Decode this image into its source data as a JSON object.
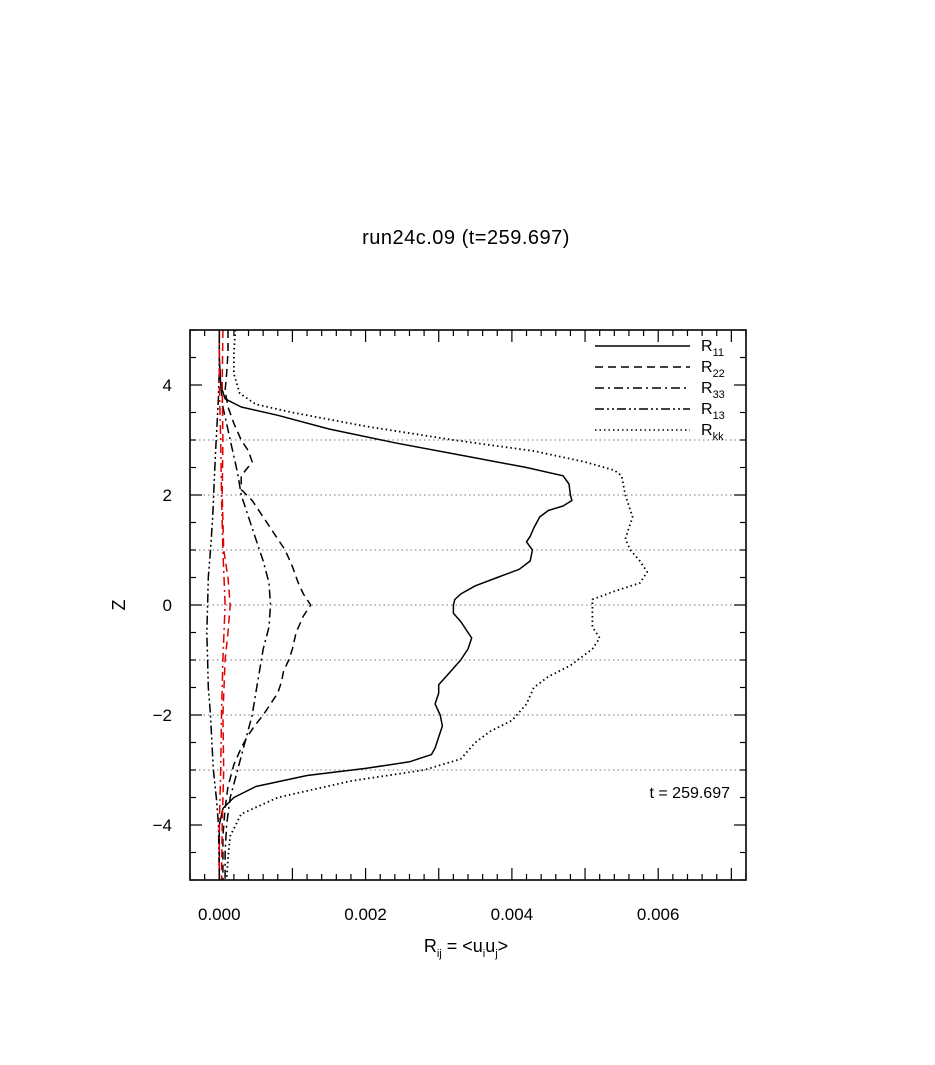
{
  "chart_data": {
    "type": "line",
    "title": "run24c.09 (t=259.697)",
    "xlabel": "R_ij = <u_i u_j>",
    "xlabel_parts": {
      "main": "R",
      "sub": "ij",
      "eq": " = <u",
      "sub_i": "i",
      "u": "u",
      "sub_j": "j",
      "close": ">"
    },
    "ylabel": "Z",
    "xlim": [
      -0.0004,
      0.0072
    ],
    "ylim": [
      -5,
      5
    ],
    "xticks": [
      0.0,
      0.002,
      0.004,
      0.006
    ],
    "xtick_labels": [
      "0.000",
      "0.002",
      "0.004",
      "0.006"
    ],
    "yticks": [
      -4,
      -2,
      0,
      2,
      4
    ],
    "ytick_labels": [
      "−4",
      "−2",
      "0",
      "2",
      "4"
    ],
    "grid_y": [
      -3,
      -2,
      -1,
      0,
      1,
      2,
      3
    ],
    "grid": "horizontal dotted at z = -3..3",
    "legend": {
      "placement": "top-right"
    },
    "annotation": "t = 259.697",
    "series": [
      {
        "name": "R11",
        "name_main": "R",
        "name_sub": "11",
        "style": "solid",
        "color": "#000000",
        "points": [
          [
            0.0,
            5.0
          ],
          [
            0.0,
            4.5
          ],
          [
            2e-05,
            4.0
          ],
          [
            8e-05,
            3.75
          ],
          [
            0.0003,
            3.6
          ],
          [
            0.0008,
            3.45
          ],
          [
            0.0015,
            3.2
          ],
          [
            0.0024,
            2.95
          ],
          [
            0.0034,
            2.7
          ],
          [
            0.0042,
            2.5
          ],
          [
            0.0047,
            2.35
          ],
          [
            0.00478,
            2.2
          ],
          [
            0.0048,
            2.0
          ],
          [
            0.00482,
            1.9
          ],
          [
            0.0047,
            1.8
          ],
          [
            0.0045,
            1.72
          ],
          [
            0.00438,
            1.6
          ],
          [
            0.0043,
            1.4
          ],
          [
            0.00425,
            1.25
          ],
          [
            0.0042,
            1.15
          ],
          [
            0.00428,
            1.0
          ],
          [
            0.00425,
            0.8
          ],
          [
            0.0041,
            0.65
          ],
          [
            0.0038,
            0.5
          ],
          [
            0.0035,
            0.35
          ],
          [
            0.0033,
            0.2
          ],
          [
            0.00322,
            0.1
          ],
          [
            0.0032,
            0.0
          ],
          [
            0.0032,
            -0.15
          ],
          [
            0.0033,
            -0.3
          ],
          [
            0.0034,
            -0.5
          ],
          [
            0.00345,
            -0.6
          ],
          [
            0.0034,
            -0.8
          ],
          [
            0.0033,
            -1.0
          ],
          [
            0.0032,
            -1.15
          ],
          [
            0.0031,
            -1.3
          ],
          [
            0.003,
            -1.45
          ],
          [
            0.003,
            -1.6
          ],
          [
            0.00295,
            -1.8
          ],
          [
            0.00302,
            -2.0
          ],
          [
            0.00305,
            -2.2
          ],
          [
            0.003,
            -2.4
          ],
          [
            0.00295,
            -2.6
          ],
          [
            0.0029,
            -2.72
          ],
          [
            0.0026,
            -2.85
          ],
          [
            0.002,
            -2.97
          ],
          [
            0.0012,
            -3.1
          ],
          [
            0.0005,
            -3.3
          ],
          [
            0.0002,
            -3.5
          ],
          [
            5e-05,
            -3.7
          ],
          [
            0.0,
            -4.0
          ],
          [
            0.0,
            -5.0
          ]
        ]
      },
      {
        "name": "R22",
        "name_main": "R",
        "name_sub": "22",
        "style": "dashed",
        "color": "#000000",
        "points": [
          [
            0.00012,
            5.0
          ],
          [
            0.00012,
            4.6
          ],
          [
            0.0001,
            4.2
          ],
          [
            8e-05,
            3.9
          ],
          [
            0.00012,
            3.6
          ],
          [
            0.0002,
            3.3
          ],
          [
            0.0003,
            3.0
          ],
          [
            0.0004,
            2.8
          ],
          [
            0.00045,
            2.6
          ],
          [
            0.0003,
            2.35
          ],
          [
            0.0003,
            2.1
          ],
          [
            0.00045,
            1.9
          ],
          [
            0.0006,
            1.6
          ],
          [
            0.00075,
            1.3
          ],
          [
            0.0009,
            1.0
          ],
          [
            0.001,
            0.7
          ],
          [
            0.00108,
            0.4
          ],
          [
            0.00115,
            0.2
          ],
          [
            0.00125,
            0.0
          ],
          [
            0.00115,
            -0.2
          ],
          [
            0.00105,
            -0.5
          ],
          [
            0.001,
            -0.8
          ],
          [
            0.00095,
            -1.0
          ],
          [
            0.00088,
            -1.2
          ],
          [
            0.00085,
            -1.4
          ],
          [
            0.0008,
            -1.6
          ],
          [
            0.0007,
            -1.8
          ],
          [
            0.0006,
            -2.0
          ],
          [
            0.00048,
            -2.2
          ],
          [
            0.00038,
            -2.4
          ],
          [
            0.0003,
            -2.6
          ],
          [
            0.0002,
            -2.9
          ],
          [
            0.00012,
            -3.3
          ],
          [
            8e-05,
            -3.7
          ],
          [
            5e-05,
            -4.2
          ],
          [
            5e-05,
            -5.0
          ]
        ]
      },
      {
        "name": "R33",
        "name_main": "R",
        "name_sub": "33",
        "style": "dashdot",
        "color": "#000000",
        "points": [
          [
            0.0,
            5.0
          ],
          [
            0.0,
            4.5
          ],
          [
            2e-05,
            4.0
          ],
          [
            5e-05,
            3.6
          ],
          [
            0.0001,
            3.3
          ],
          [
            0.00015,
            3.0
          ],
          [
            0.0002,
            2.7
          ],
          [
            0.00025,
            2.4
          ],
          [
            0.0003,
            2.0
          ],
          [
            0.0004,
            1.6
          ],
          [
            0.0005,
            1.2
          ],
          [
            0.0006,
            0.8
          ],
          [
            0.00068,
            0.4
          ],
          [
            0.0007,
            0.0
          ],
          [
            0.00068,
            -0.4
          ],
          [
            0.0006,
            -0.8
          ],
          [
            0.00055,
            -1.2
          ],
          [
            0.0005,
            -1.6
          ],
          [
            0.00045,
            -2.0
          ],
          [
            0.00035,
            -2.5
          ],
          [
            0.00025,
            -3.0
          ],
          [
            0.00015,
            -3.5
          ],
          [
            0.0001,
            -4.0
          ],
          [
            8e-05,
            -4.5
          ],
          [
            8e-05,
            -5.0
          ]
        ]
      },
      {
        "name": "R13",
        "name_main": "R",
        "name_sub": "13",
        "style": "dashdotdot",
        "color": "#000000",
        "points": [
          [
            0.0,
            5.0
          ],
          [
            0.0,
            4.3
          ],
          [
            -1e-05,
            3.8
          ],
          [
            -3e-05,
            3.3
          ],
          [
            -5e-05,
            2.8
          ],
          [
            -7e-05,
            2.2
          ],
          [
            -9e-05,
            1.6
          ],
          [
            -0.00012,
            1.0
          ],
          [
            -0.00015,
            0.5
          ],
          [
            -0.00016,
            0.0
          ],
          [
            -0.00017,
            -0.5
          ],
          [
            -0.00016,
            -1.0
          ],
          [
            -0.00015,
            -1.5
          ],
          [
            -0.00012,
            -2.0
          ],
          [
            -0.0001,
            -2.5
          ],
          [
            -8e-05,
            -3.0
          ],
          [
            -4e-05,
            -3.5
          ],
          [
            -1e-05,
            -4.0
          ],
          [
            0.0,
            -5.0
          ]
        ]
      },
      {
        "name": "Rkk",
        "name_main": "R",
        "name_sub": "kk",
        "style": "dotted",
        "color": "#000000",
        "points": [
          [
            0.00022,
            5.0
          ],
          [
            0.0002,
            4.6
          ],
          [
            0.0002,
            4.2
          ],
          [
            0.00028,
            3.85
          ],
          [
            0.0005,
            3.65
          ],
          [
            0.001,
            3.5
          ],
          [
            0.002,
            3.25
          ],
          [
            0.0032,
            3.0
          ],
          [
            0.0043,
            2.8
          ],
          [
            0.005,
            2.6
          ],
          [
            0.0054,
            2.45
          ],
          [
            0.0055,
            2.35
          ],
          [
            0.00555,
            2.0
          ],
          [
            0.0056,
            1.8
          ],
          [
            0.00565,
            1.6
          ],
          [
            0.0056,
            1.4
          ],
          [
            0.00555,
            1.2
          ],
          [
            0.00562,
            1.0
          ],
          [
            0.00575,
            0.8
          ],
          [
            0.00585,
            0.6
          ],
          [
            0.00575,
            0.4
          ],
          [
            0.0054,
            0.25
          ],
          [
            0.0051,
            0.1
          ],
          [
            0.0051,
            -0.2
          ],
          [
            0.0051,
            -0.4
          ],
          [
            0.0052,
            -0.6
          ],
          [
            0.0051,
            -0.8
          ],
          [
            0.0048,
            -1.1
          ],
          [
            0.0045,
            -1.3
          ],
          [
            0.0043,
            -1.5
          ],
          [
            0.0042,
            -1.8
          ],
          [
            0.004,
            -2.1
          ],
          [
            0.0037,
            -2.3
          ],
          [
            0.0035,
            -2.5
          ],
          [
            0.0033,
            -2.8
          ],
          [
            0.0028,
            -3.0
          ],
          [
            0.0018,
            -3.2
          ],
          [
            0.0008,
            -3.5
          ],
          [
            0.0003,
            -3.8
          ],
          [
            0.00015,
            -4.2
          ],
          [
            0.00012,
            -4.6
          ],
          [
            0.0001,
            -5.0
          ]
        ]
      },
      {
        "name": "",
        "style": "dashed",
        "color": "#e00000",
        "points": [
          [
            5e-05,
            5.0
          ],
          [
            4e-05,
            4.0
          ],
          [
            5e-05,
            3.0
          ],
          [
            4e-05,
            2.0
          ],
          [
            6e-05,
            1.0
          ],
          [
            0.00012,
            0.5
          ],
          [
            0.00015,
            0.0
          ],
          [
            0.00012,
            -0.5
          ],
          [
            8e-05,
            -1.0
          ],
          [
            5e-05,
            -2.0
          ],
          [
            6e-05,
            -3.0
          ],
          [
            4e-05,
            -4.0
          ],
          [
            3e-05,
            -5.0
          ]
        ]
      },
      {
        "name": "",
        "style": "dashdot",
        "color": "#e00000",
        "points": [
          [
            0.0,
            5.0
          ],
          [
            0.0,
            4.0
          ],
          [
            2e-05,
            3.0
          ],
          [
            3e-05,
            2.0
          ],
          [
            5e-05,
            1.0
          ],
          [
            8e-05,
            0.0
          ],
          [
            5e-05,
            -1.0
          ],
          [
            3e-05,
            -2.0
          ],
          [
            2e-05,
            -3.0
          ],
          [
            0.0,
            -4.0
          ],
          [
            0.0,
            -5.0
          ]
        ]
      }
    ]
  }
}
